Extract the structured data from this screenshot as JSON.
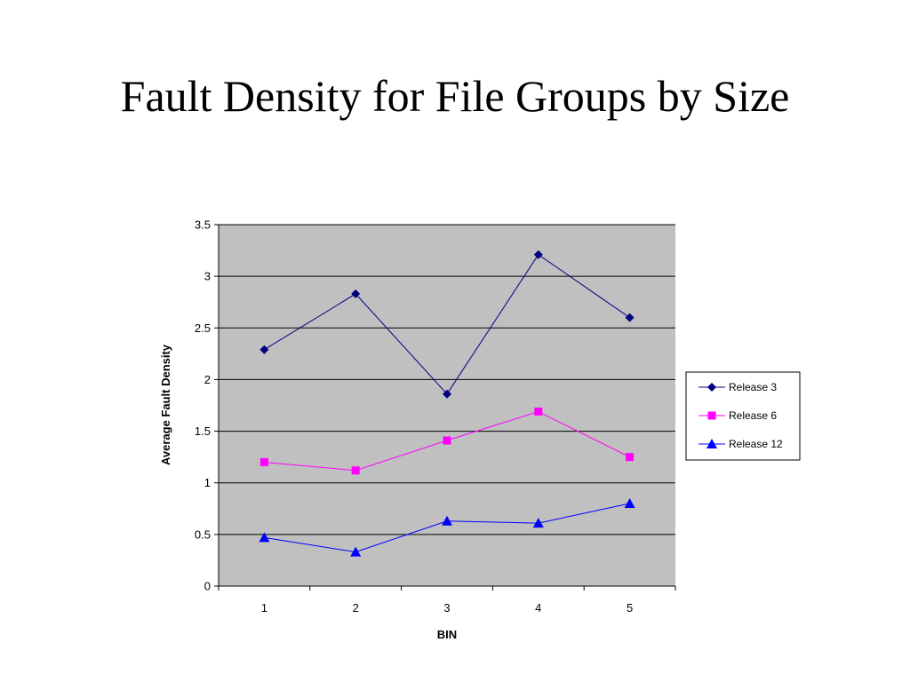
{
  "slide": {
    "title": "Fault Density for File Groups by Size"
  },
  "chart_data": {
    "type": "line",
    "x": [
      1,
      2,
      3,
      4,
      5
    ],
    "xlabel": "BIN",
    "ylabel": "Average Fault Density",
    "ylim": [
      0,
      3.5
    ],
    "yticks": [
      0,
      0.5,
      1,
      1.5,
      2,
      2.5,
      3,
      3.5
    ],
    "grid": true,
    "plot_background": "#c0c0c0",
    "legend_position": "right",
    "series": [
      {
        "name": "Release 3",
        "marker": "diamond",
        "color": "#000080",
        "values": [
          2.29,
          2.83,
          1.86,
          3.21,
          2.6
        ]
      },
      {
        "name": "Release 6",
        "marker": "square",
        "color": "#ff00ff",
        "values": [
          1.2,
          1.12,
          1.41,
          1.69,
          1.25
        ]
      },
      {
        "name": "Release 12",
        "marker": "triangle",
        "color": "#0000ff",
        "values": [
          0.47,
          0.33,
          0.63,
          0.61,
          0.8
        ]
      }
    ]
  }
}
